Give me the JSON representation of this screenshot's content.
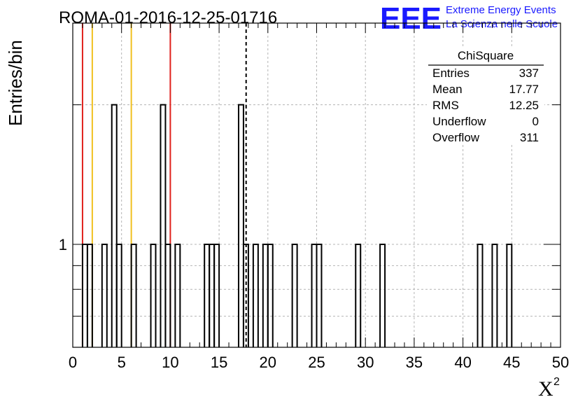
{
  "chart_data": {
    "type": "bar",
    "title": "ROMA-01-2016-12-25-01716",
    "xlabel": "X",
    "xlabel_superscript": "2",
    "ylabel": "Entries/bin",
    "xlim": [
      0,
      50
    ],
    "ylim": [
      0.6,
      3
    ],
    "yscale": "log",
    "grid": true,
    "x_ticks": [
      "0",
      "5",
      "10",
      "15",
      "20",
      "25",
      "30",
      "35",
      "40",
      "45",
      "50"
    ],
    "y_tick_labels": [
      {
        "value": 1,
        "label": "1"
      }
    ],
    "bin_width": 0.5,
    "bins": [
      {
        "x": 1.0,
        "y": 1
      },
      {
        "x": 1.5,
        "y": 1
      },
      {
        "x": 3.0,
        "y": 1
      },
      {
        "x": 4.0,
        "y": 2
      },
      {
        "x": 4.5,
        "y": 1
      },
      {
        "x": 6.0,
        "y": 1
      },
      {
        "x": 8.0,
        "y": 1
      },
      {
        "x": 9.0,
        "y": 2
      },
      {
        "x": 9.5,
        "y": 1
      },
      {
        "x": 10.5,
        "y": 1
      },
      {
        "x": 13.5,
        "y": 1
      },
      {
        "x": 14.0,
        "y": 1
      },
      {
        "x": 14.5,
        "y": 1
      },
      {
        "x": 17.0,
        "y": 2
      },
      {
        "x": 17.5,
        "y": 1
      },
      {
        "x": 18.5,
        "y": 1
      },
      {
        "x": 19.5,
        "y": 1
      },
      {
        "x": 20.0,
        "y": 1
      },
      {
        "x": 22.5,
        "y": 1
      },
      {
        "x": 24.5,
        "y": 1
      },
      {
        "x": 25.0,
        "y": 1
      },
      {
        "x": 29.0,
        "y": 1
      },
      {
        "x": 31.5,
        "y": 1
      },
      {
        "x": 41.5,
        "y": 1
      },
      {
        "x": 43.0,
        "y": 1
      },
      {
        "x": 44.5,
        "y": 1
      }
    ],
    "reference_lines": [
      {
        "x": 1.0,
        "color": "#e0201b",
        "style": "solid"
      },
      {
        "x": 2.0,
        "color": "#f0c020",
        "style": "solid"
      },
      {
        "x": 6.0,
        "color": "#f0c020",
        "style": "solid"
      },
      {
        "x": 10.0,
        "color": "#e0201b",
        "style": "solid"
      },
      {
        "x": 17.77,
        "color": "#000000",
        "style": "dashed"
      }
    ],
    "stats_box": {
      "title": "ChiSquare",
      "rows": [
        {
          "label": "Entries",
          "value": "337"
        },
        {
          "label": "Mean",
          "value": "17.77"
        },
        {
          "label": "RMS",
          "value": "12.25"
        },
        {
          "label": "Underflow",
          "value": "0"
        },
        {
          "label": "Overflow",
          "value": "311"
        }
      ]
    }
  },
  "logo": {
    "text": "EEE",
    "line1": "Extreme Energy Events",
    "line2": "La Scienza nelle Scuole",
    "color": "#1a1aff"
  }
}
